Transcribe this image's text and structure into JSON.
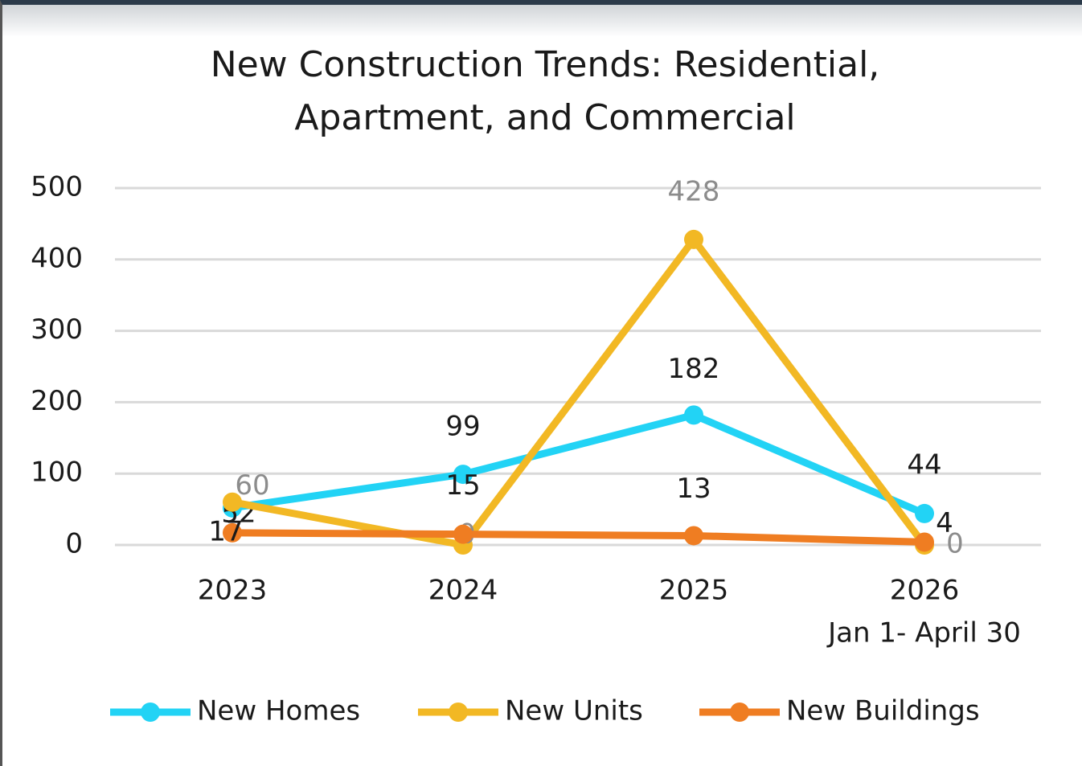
{
  "chart_data": {
    "type": "line",
    "title": "New Construction Trends: Residential, Apartment, and Commercial",
    "categories": [
      "2023",
      "2024",
      "2025",
      [
        "2026",
        "Jan 1- April 30"
      ]
    ],
    "ylim": [
      0,
      500
    ],
    "yticks": [
      0,
      100,
      200,
      300,
      400,
      500
    ],
    "grid": true,
    "legend": "bottom",
    "series": [
      {
        "name": "New Homes",
        "color": "#22d3f5",
        "values": [
          52,
          99,
          182,
          44
        ]
      },
      {
        "name": "New Units",
        "color": "#f2b824",
        "values": [
          60,
          0,
          428,
          0
        ]
      },
      {
        "name": "New Buildings",
        "color": "#ef7d22",
        "values": [
          17,
          15,
          13,
          4
        ]
      }
    ]
  }
}
